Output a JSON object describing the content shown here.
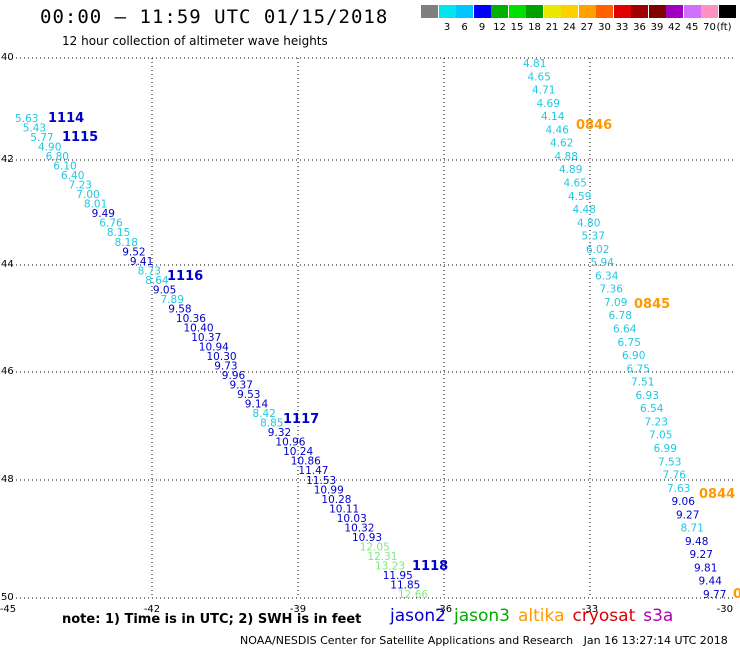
{
  "header": {
    "title": "00:00 – 11:59 UTC 01/15/2018",
    "subtitle": "12 hour collection of altimeter wave heights"
  },
  "colorbar": {
    "unit_label": "(ft)",
    "items": [
      {
        "label": "",
        "color": "#7f7f7f"
      },
      {
        "label": "3",
        "color": "#00e5ee"
      },
      {
        "label": "6",
        "color": "#00c8ff"
      },
      {
        "label": "9",
        "color": "#0000ff"
      },
      {
        "label": "12",
        "color": "#00b000"
      },
      {
        "label": "15",
        "color": "#00e000"
      },
      {
        "label": "18",
        "color": "#00a000"
      },
      {
        "label": "21",
        "color": "#e8e800"
      },
      {
        "label": "24",
        "color": "#ffd000"
      },
      {
        "label": "27",
        "color": "#ffa000"
      },
      {
        "label": "30",
        "color": "#ff6000"
      },
      {
        "label": "33",
        "color": "#e00000"
      },
      {
        "label": "36",
        "color": "#a00000"
      },
      {
        "label": "39",
        "color": "#800000"
      },
      {
        "label": "42",
        "color": "#a000c0"
      },
      {
        "label": "45",
        "color": "#d070ff"
      },
      {
        "label": "70",
        "color": "#ff90c0"
      },
      {
        "label": "",
        "color": "#000000"
      }
    ]
  },
  "map": {
    "lon_ticks": [
      "-45",
      "-42",
      "-39",
      "-36",
      "-33",
      "-30"
    ],
    "lat_ticks": [
      "40",
      "42",
      "44",
      "46",
      "48",
      "50"
    ],
    "colors": {
      "jason2": "#0000cc",
      "jason2_light": "#20c8e0",
      "jason3": "#80e880",
      "altika": "#ff9900"
    },
    "pass_labels": [
      {
        "text": "1114",
        "color": "#0000cc"
      },
      {
        "text": "1115",
        "color": "#0000cc"
      },
      {
        "text": "1116",
        "color": "#0000cc"
      },
      {
        "text": "1117",
        "color": "#0000cc"
      },
      {
        "text": "1118",
        "color": "#0000cc"
      },
      {
        "text": "0846",
        "color": "#ff9900"
      },
      {
        "text": "0845",
        "color": "#ff9900"
      },
      {
        "text": "0844",
        "color": "#ff9900"
      },
      {
        "text": "0",
        "color": "#ff9900"
      }
    ],
    "track_west": [
      {
        "v": "5.63",
        "c": "light"
      },
      {
        "v": "5.43",
        "c": "light"
      },
      {
        "v": "5.77",
        "c": "light"
      },
      {
        "v": "4.90",
        "c": "light"
      },
      {
        "v": "6.80",
        "c": "light"
      },
      {
        "v": "6.10",
        "c": "light"
      },
      {
        "v": "6.40",
        "c": "light"
      },
      {
        "v": "7.23",
        "c": "light"
      },
      {
        "v": "7.00",
        "c": "light"
      },
      {
        "v": "8.01",
        "c": "light"
      },
      {
        "v": "9.49",
        "c": "dark"
      },
      {
        "v": "6.76",
        "c": "light"
      },
      {
        "v": "8.15",
        "c": "light"
      },
      {
        "v": "8.18",
        "c": "light"
      },
      {
        "v": "9.52",
        "c": "dark"
      },
      {
        "v": "9.41",
        "c": "dark"
      },
      {
        "v": "8.73",
        "c": "light"
      },
      {
        "v": "8.64",
        "c": "light"
      },
      {
        "v": "9.05",
        "c": "dark"
      },
      {
        "v": "7.89",
        "c": "light"
      },
      {
        "v": "9.58",
        "c": "dark"
      },
      {
        "v": "10.36",
        "c": "dark"
      },
      {
        "v": "10.40",
        "c": "dark"
      },
      {
        "v": "10.37",
        "c": "dark"
      },
      {
        "v": "10.94",
        "c": "dark"
      },
      {
        "v": "10.30",
        "c": "dark"
      },
      {
        "v": "9.73",
        "c": "dark"
      },
      {
        "v": "9.96",
        "c": "dark"
      },
      {
        "v": "9.37",
        "c": "dark"
      },
      {
        "v": "9.53",
        "c": "dark"
      },
      {
        "v": "9.14",
        "c": "dark"
      },
      {
        "v": "8.42",
        "c": "light"
      },
      {
        "v": "8.85",
        "c": "light"
      },
      {
        "v": "9.32",
        "c": "dark"
      },
      {
        "v": "10.96",
        "c": "dark"
      },
      {
        "v": "10.24",
        "c": "dark"
      },
      {
        "v": "10.86",
        "c": "dark"
      },
      {
        "v": "11.47",
        "c": "dark"
      },
      {
        "v": "11.53",
        "c": "dark"
      },
      {
        "v": "10.99",
        "c": "dark"
      },
      {
        "v": "10.28",
        "c": "dark"
      },
      {
        "v": "10.11",
        "c": "dark"
      },
      {
        "v": "10.03",
        "c": "dark"
      },
      {
        "v": "10.32",
        "c": "dark"
      },
      {
        "v": "10.93",
        "c": "dark"
      },
      {
        "v": "12.05",
        "c": "green"
      },
      {
        "v": "12.31",
        "c": "green"
      },
      {
        "v": "13.23",
        "c": "green"
      },
      {
        "v": "11.95",
        "c": "dark"
      },
      {
        "v": "11.85",
        "c": "dark"
      },
      {
        "v": "12.66",
        "c": "green"
      }
    ],
    "track_east": [
      {
        "v": "4.81",
        "c": "light"
      },
      {
        "v": "4.65",
        "c": "light"
      },
      {
        "v": "4.71",
        "c": "light"
      },
      {
        "v": "4.69",
        "c": "light"
      },
      {
        "v": "4.14",
        "c": "light"
      },
      {
        "v": "4.46",
        "c": "light"
      },
      {
        "v": "4.62",
        "c": "light"
      },
      {
        "v": "4.88",
        "c": "light"
      },
      {
        "v": "4.89",
        "c": "light"
      },
      {
        "v": "4.65",
        "c": "light"
      },
      {
        "v": "4.59",
        "c": "light"
      },
      {
        "v": "4.48",
        "c": "light"
      },
      {
        "v": "4.80",
        "c": "light"
      },
      {
        "v": "5.37",
        "c": "light"
      },
      {
        "v": "6.02",
        "c": "light"
      },
      {
        "v": "5.94",
        "c": "light"
      },
      {
        "v": "6.34",
        "c": "light"
      },
      {
        "v": "7.36",
        "c": "light"
      },
      {
        "v": "7.09",
        "c": "light"
      },
      {
        "v": "6.78",
        "c": "light"
      },
      {
        "v": "6.64",
        "c": "light"
      },
      {
        "v": "6.75",
        "c": "light"
      },
      {
        "v": "6.90",
        "c": "light"
      },
      {
        "v": "6.75",
        "c": "light"
      },
      {
        "v": "7.51",
        "c": "light"
      },
      {
        "v": "6.93",
        "c": "light"
      },
      {
        "v": "6.54",
        "c": "light"
      },
      {
        "v": "7.23",
        "c": "light"
      },
      {
        "v": "7.05",
        "c": "light"
      },
      {
        "v": "6.99",
        "c": "light"
      },
      {
        "v": "7.53",
        "c": "light"
      },
      {
        "v": "7.76",
        "c": "light"
      },
      {
        "v": "7.63",
        "c": "light"
      },
      {
        "v": "9.06",
        "c": "dark"
      },
      {
        "v": "9.27",
        "c": "dark"
      },
      {
        "v": "8.71",
        "c": "light"
      },
      {
        "v": "9.48",
        "c": "dark"
      },
      {
        "v": "9.27",
        "c": "dark"
      },
      {
        "v": "9.81",
        "c": "dark"
      },
      {
        "v": "9.44",
        "c": "dark"
      },
      {
        "v": "9.77",
        "c": "dark"
      }
    ]
  },
  "note": "note: 1) Time is in UTC; 2) SWH is in feet",
  "legend": [
    {
      "label": "jason2",
      "color": "#0000cc"
    },
    {
      "label": "jason3",
      "color": "#00aa00"
    },
    {
      "label": "altika",
      "color": "#ff9900"
    },
    {
      "label": "cryosat",
      "color": "#dd0000"
    },
    {
      "label": "s3a",
      "color": "#b000b0"
    }
  ],
  "footer": "NOAA/NESDIS Center for Satellite Applications and Research   Jan 16 13:27:14 UTC 2018"
}
